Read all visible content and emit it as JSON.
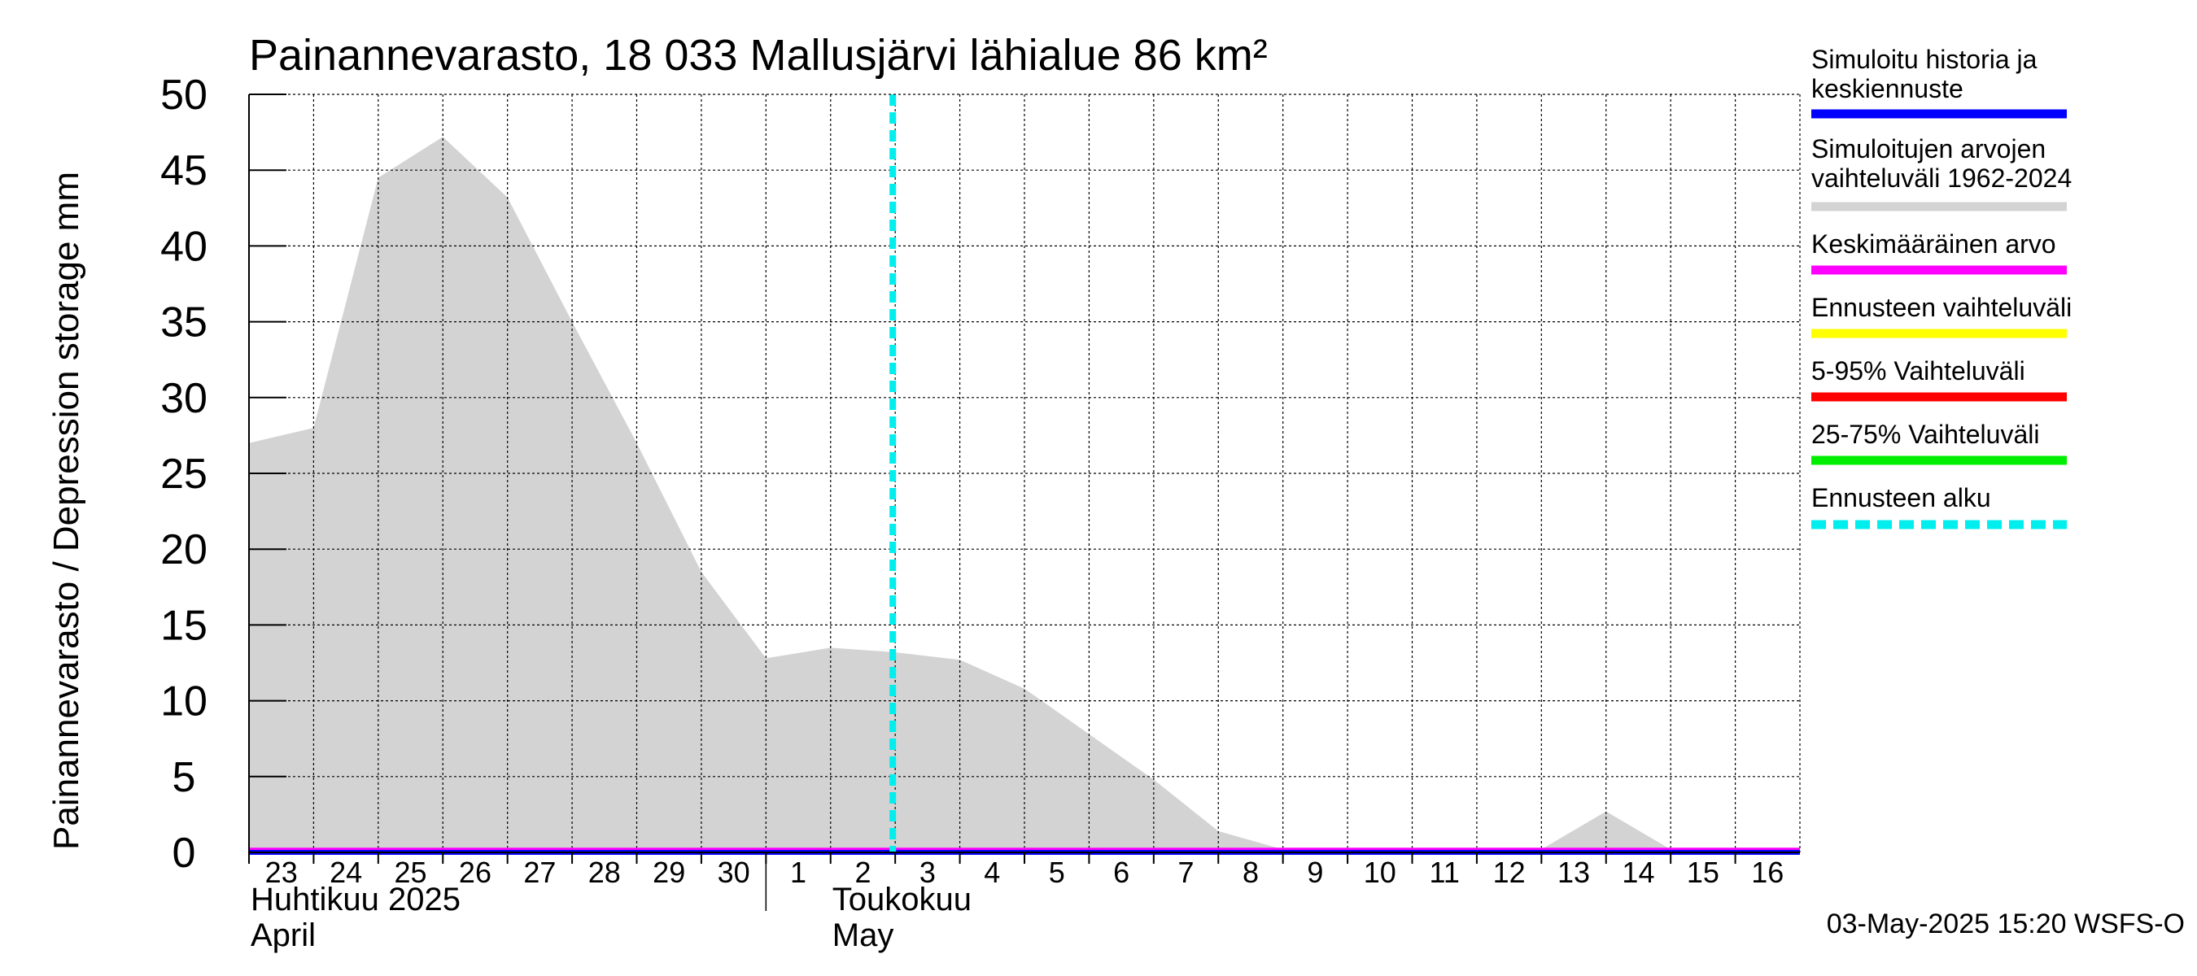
{
  "colors": {
    "band": "#d3d3d3",
    "history": "#0000ff",
    "mean": "#ff00ff",
    "forecast_range": "#ffff00",
    "p5_95": "#ff0000",
    "p25_75": "#00ee00",
    "forecast_start": "#00eeee",
    "grid": "#000000"
  },
  "legend": [
    {
      "lines": [
        "Simuloitu historia ja",
        "keskiennuste"
      ],
      "color": "#0000ff",
      "style": "solid"
    },
    {
      "lines": [
        "Simuloitujen arvojen",
        "vaihteluväli 1962-2024"
      ],
      "color": "#d3d3d3",
      "style": "solid"
    },
    {
      "lines": [
        "Keskimääräinen arvo"
      ],
      "color": "#ff00ff",
      "style": "solid"
    },
    {
      "lines": [
        "Ennusteen vaihteluväli"
      ],
      "color": "#ffff00",
      "style": "solid"
    },
    {
      "lines": [
        "5-95% Vaihteluväli"
      ],
      "color": "#ff0000",
      "style": "solid"
    },
    {
      "lines": [
        "25-75% Vaihteluväli"
      ],
      "color": "#00ee00",
      "style": "solid"
    },
    {
      "lines": [
        "Ennusteen alku"
      ],
      "color": "#00eeee",
      "style": "dashed"
    }
  ],
  "footer": "03-May-2025 15:20 WSFS-O",
  "chart_data": {
    "type": "area",
    "title": "Painannevarasto, 18 033 Mallusjärvi lähialue 86 km²",
    "ylabel": "Painannevarasto / Depression storage    mm",
    "ylim": [
      0,
      50
    ],
    "yticks": [
      0,
      5,
      10,
      15,
      20,
      25,
      30,
      35,
      40,
      45,
      50
    ],
    "x_range": [
      "2025-04-23",
      "2025-05-17"
    ],
    "x_tick_labels": [
      "23",
      "24",
      "25",
      "26",
      "27",
      "28",
      "29",
      "30",
      "1",
      "2",
      "3",
      "4",
      "5",
      "6",
      "7",
      "8",
      "9",
      "10",
      "11",
      "12",
      "13",
      "14",
      "15",
      "16"
    ],
    "month_labels": [
      {
        "date": "2025-04-23",
        "lines": [
          "Huhtikuu  2025",
          "April"
        ]
      },
      {
        "date": "2025-05-02",
        "lines": [
          "Toukokuu",
          "May"
        ]
      }
    ],
    "forecast_start": "2025-05-03",
    "grid": true,
    "legend_position": "right",
    "series": [
      {
        "name": "Simuloitujen arvojen vaihteluväli 1962-2024",
        "kind": "band",
        "x": [
          "2025-04-23",
          "2025-04-24",
          "2025-04-25",
          "2025-04-26",
          "2025-04-27",
          "2025-04-28",
          "2025-04-29",
          "2025-04-30",
          "2025-05-01",
          "2025-05-02",
          "2025-05-03",
          "2025-05-04",
          "2025-05-05",
          "2025-05-06",
          "2025-05-07",
          "2025-05-08",
          "2025-05-09",
          "2025-05-10",
          "2025-05-11",
          "2025-05-12",
          "2025-05-13",
          "2025-05-14",
          "2025-05-15",
          "2025-05-16",
          "2025-05-17"
        ],
        "upper": [
          27.0,
          28.0,
          44.5,
          47.2,
          43.2,
          35.0,
          27.0,
          18.5,
          12.8,
          13.5,
          13.2,
          12.7,
          10.8,
          7.8,
          4.8,
          1.4,
          0.2,
          0.2,
          0.2,
          0.2,
          0.2,
          2.7,
          0.2,
          0.3,
          0.3
        ],
        "lower": [
          0,
          0,
          0,
          0,
          0,
          0,
          0,
          0,
          0,
          0,
          0,
          0,
          0,
          0,
          0,
          0,
          0,
          0,
          0,
          0,
          0,
          0,
          0,
          0,
          0
        ]
      },
      {
        "name": "Keskimääräinen arvo",
        "kind": "line",
        "x": [
          "2025-04-23",
          "2025-05-17"
        ],
        "values": [
          0.2,
          0.2
        ]
      },
      {
        "name": "Simuloitu historia ja keskiennuste",
        "kind": "line",
        "x": [
          "2025-04-23",
          "2025-05-17"
        ],
        "values": [
          0,
          0
        ]
      }
    ]
  }
}
